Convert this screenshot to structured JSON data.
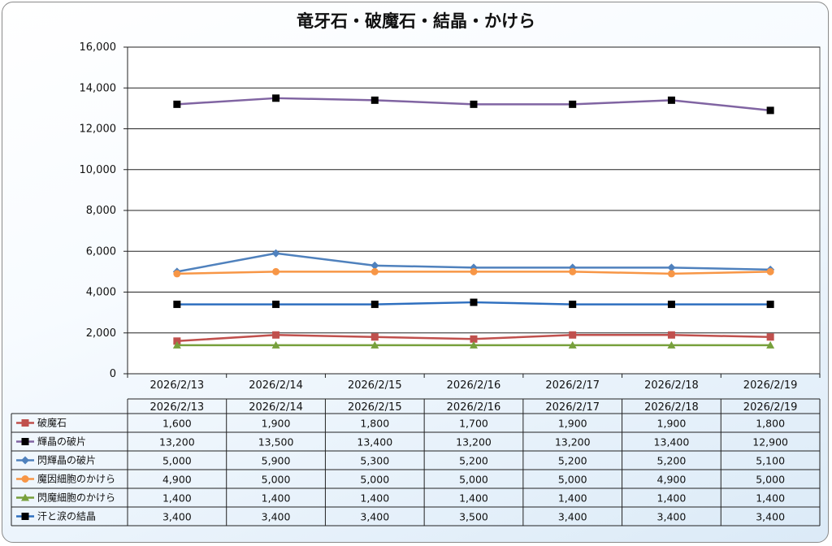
{
  "chart_data": {
    "type": "line",
    "title": "竜牙石・破魔石・結晶・かけら",
    "xlabel": "",
    "ylabel": "",
    "ylim": [
      0,
      16000
    ],
    "yticks": [
      "0",
      "2,000",
      "4,000",
      "6,000",
      "8,000",
      "10,000",
      "12,000",
      "14,000",
      "16,000"
    ],
    "categories": [
      "2026/2/13",
      "2026/2/14",
      "2026/2/15",
      "2026/2/16",
      "2026/2/17",
      "2026/2/18",
      "2026/2/19"
    ],
    "grid": true,
    "legend": "data-table-below",
    "series": [
      {
        "name": "破魔石",
        "color": "#c0504d",
        "marker": "square",
        "values": [
          1600,
          1900,
          1800,
          1700,
          1900,
          1900,
          1800
        ],
        "labels": [
          "1,600",
          "1,900",
          "1,800",
          "1,700",
          "1,900",
          "1,900",
          "1,800"
        ]
      },
      {
        "name": "輝晶の破片",
        "color": "#8064a2",
        "markerColor": "#000000",
        "marker": "square",
        "values": [
          13200,
          13500,
          13400,
          13200,
          13200,
          13400,
          12900
        ],
        "labels": [
          "13,200",
          "13,500",
          "13,400",
          "13,200",
          "13,200",
          "13,400",
          "12,900"
        ]
      },
      {
        "name": "閃輝晶の破片",
        "color": "#4f81bd",
        "marker": "diamond",
        "values": [
          5000,
          5900,
          5300,
          5200,
          5200,
          5200,
          5100
        ],
        "labels": [
          "5,000",
          "5,900",
          "5,300",
          "5,200",
          "5,200",
          "5,200",
          "5,100"
        ]
      },
      {
        "name": "魔因細胞のかけら",
        "color": "#f79646",
        "marker": "circle",
        "values": [
          4900,
          5000,
          5000,
          5000,
          5000,
          4900,
          5000
        ],
        "labels": [
          "4,900",
          "5,000",
          "5,000",
          "5,000",
          "5,000",
          "4,900",
          "5,000"
        ]
      },
      {
        "name": "閃魔細胞のかけら",
        "color": "#77a03c",
        "marker": "triangle",
        "values": [
          1400,
          1400,
          1400,
          1400,
          1400,
          1400,
          1400
        ],
        "labels": [
          "1,400",
          "1,400",
          "1,400",
          "1,400",
          "1,400",
          "1,400",
          "1,400"
        ]
      },
      {
        "name": "汗と涙の結晶",
        "color": "#2e6fbf",
        "markerColor": "#000000",
        "marker": "square",
        "values": [
          3400,
          3400,
          3400,
          3500,
          3400,
          3400,
          3400
        ],
        "labels": [
          "3,400",
          "3,400",
          "3,400",
          "3,500",
          "3,400",
          "3,400",
          "3,400"
        ]
      }
    ]
  }
}
